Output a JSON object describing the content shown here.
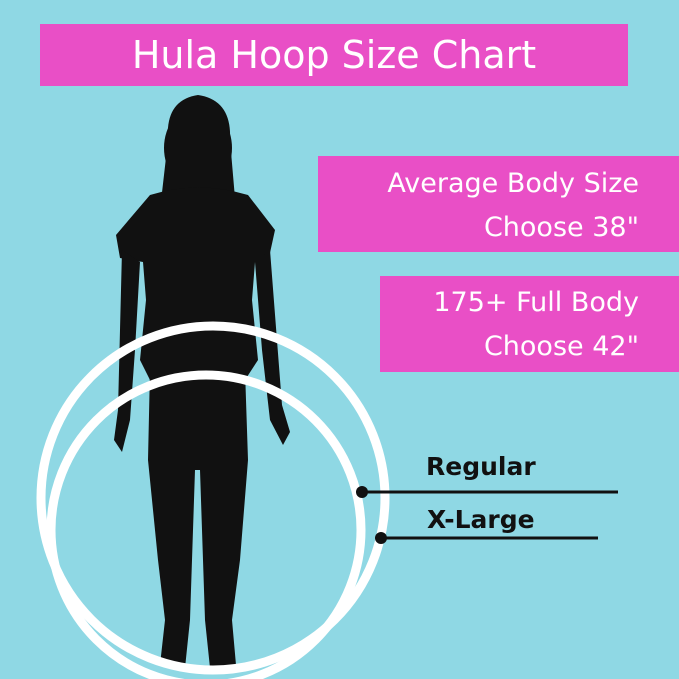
{
  "title": "Hula Hoop Size Chart",
  "recommendations": [
    {
      "line1": "Average Body Size",
      "line2": "Choose 38\""
    },
    {
      "line1": "175+ Full Body",
      "line2": "Choose 42\""
    }
  ],
  "hoops": [
    {
      "label": "Regular"
    },
    {
      "label": "X-Large"
    }
  ],
  "colors": {
    "background": "#8fd8e4",
    "banner": "#e94fc6",
    "hoop": "#ffffff",
    "silhouette": "#111111"
  }
}
